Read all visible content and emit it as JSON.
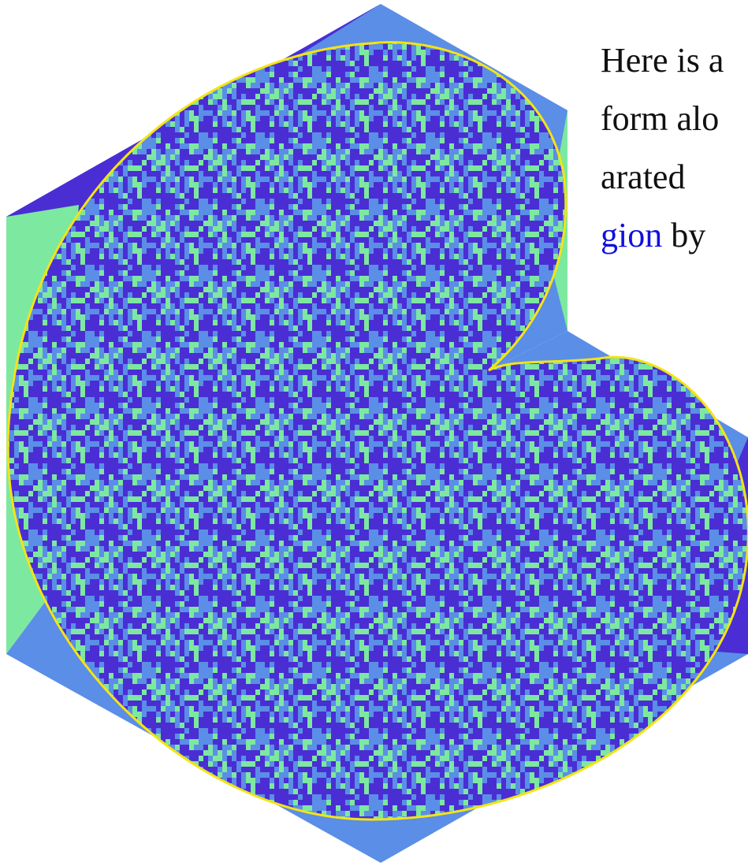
{
  "text": {
    "lines": [
      "Here is a",
      "form alo",
      "arated"
    ],
    "last_line": {
      "link": "gion",
      "rest": "by"
    }
  }
}
